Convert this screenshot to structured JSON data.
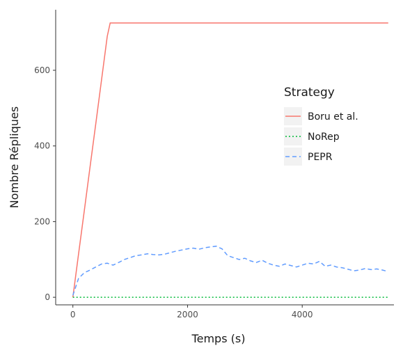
{
  "chart_data": {
    "type": "line",
    "title": "",
    "xlabel": "Temps (s)",
    "ylabel": "Nombre Répliques",
    "xlim": [
      -300,
      5600
    ],
    "ylim": [
      -20,
      760
    ],
    "x_ticks": [
      0,
      2000,
      4000
    ],
    "y_ticks": [
      0,
      200,
      400,
      600
    ],
    "x_tick_labels": [
      "0",
      "2000",
      "4000"
    ],
    "y_tick_labels": [
      "0",
      "200",
      "400",
      "600"
    ],
    "grid": false,
    "legend": {
      "title": "Strategy",
      "position": "right-inside"
    },
    "series": [
      {
        "name": "Boru et al.",
        "color": "#F8766D",
        "dash": "solid",
        "x": [
          0,
          100,
          200,
          300,
          400,
          500,
          600,
          650,
          700,
          1500,
          3000,
          4500,
          5500
        ],
        "y": [
          0,
          115,
          230,
          345,
          460,
          575,
          690,
          725,
          725,
          725,
          725,
          725,
          725
        ]
      },
      {
        "name": "NoRep",
        "color": "#00BA38",
        "dash": "dotted",
        "x": [
          0,
          1000,
          2000,
          3000,
          4000,
          5500
        ],
        "y": [
          0,
          0,
          0,
          0,
          0,
          0
        ]
      },
      {
        "name": "PEPR",
        "color": "#619CFF",
        "dash": "dashed",
        "x": [
          0,
          100,
          200,
          300,
          400,
          500,
          600,
          700,
          800,
          900,
          1000,
          1100,
          1200,
          1300,
          1400,
          1500,
          1600,
          1700,
          1800,
          1900,
          2000,
          2100,
          2200,
          2300,
          2400,
          2500,
          2600,
          2700,
          2800,
          2900,
          3000,
          3100,
          3200,
          3300,
          3400,
          3500,
          3600,
          3700,
          3800,
          3900,
          4000,
          4100,
          4200,
          4300,
          4400,
          4500,
          4600,
          4700,
          4800,
          4900,
          5000,
          5100,
          5200,
          5300,
          5400,
          5500
        ],
        "y": [
          5,
          50,
          65,
          72,
          80,
          88,
          90,
          85,
          92,
          100,
          105,
          110,
          112,
          115,
          113,
          112,
          114,
          118,
          122,
          125,
          128,
          130,
          127,
          131,
          133,
          135,
          128,
          110,
          105,
          100,
          103,
          96,
          92,
          98,
          90,
          85,
          82,
          88,
          84,
          80,
          85,
          90,
          88,
          95,
          82,
          85,
          80,
          78,
          74,
          70,
          72,
          76,
          73,
          75,
          72,
          68
        ]
      }
    ]
  }
}
